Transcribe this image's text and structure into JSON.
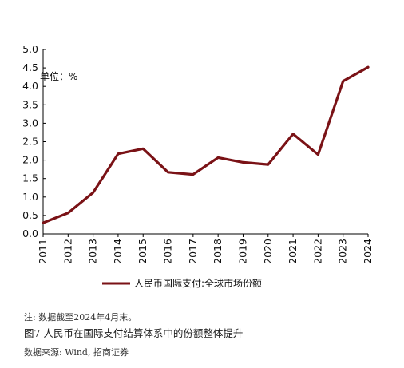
{
  "chart_data": {
    "type": "line",
    "unit_label": "单位：%",
    "x": [
      "2011",
      "2012",
      "2013",
      "2014",
      "2015",
      "2016",
      "2017",
      "2018",
      "2019",
      "2020",
      "2021",
      "2022",
      "2023",
      "2024"
    ],
    "series": [
      {
        "name": "人民币国际支付:全球市场份额",
        "values": [
          0.3,
          0.57,
          1.12,
          2.17,
          2.31,
          1.67,
          1.61,
          2.07,
          1.94,
          1.88,
          2.71,
          2.15,
          4.14,
          4.52
        ],
        "color": "#7a1216"
      }
    ],
    "ylim": [
      0,
      5
    ],
    "yticks": [
      "0.0",
      "0.5",
      "1.0",
      "1.5",
      "2.0",
      "2.5",
      "3.0",
      "3.5",
      "4.0",
      "4.5",
      "5.0"
    ],
    "grid": false,
    "legend_position": "bottom"
  },
  "notes": {
    "note": "注: 数据截至2024年4月末。",
    "caption": "图7   人民币在国际支付结算体系中的份额整体提升",
    "source": "数据来源: Wind, 招商证券"
  }
}
